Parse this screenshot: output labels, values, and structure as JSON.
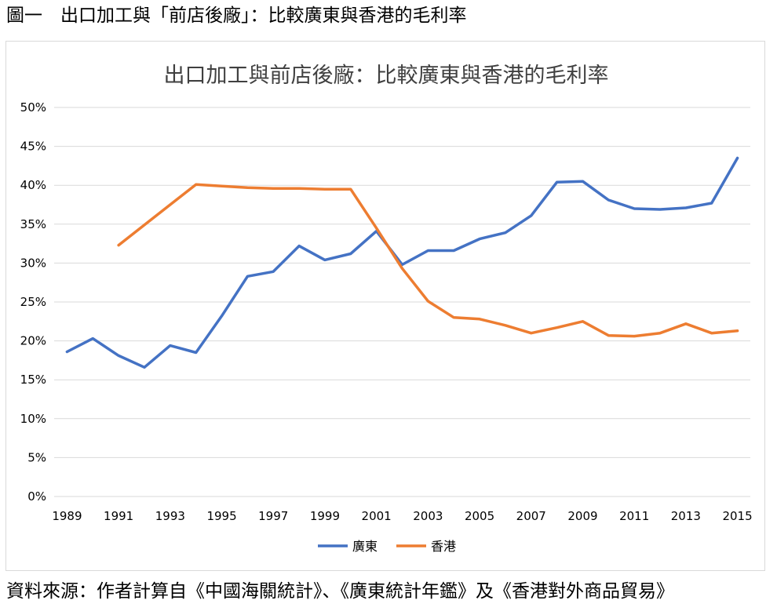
{
  "figure": {
    "caption": "圖一　出口加工與「前店後廠」：比較廣東與香港的毛利率",
    "source": "資料來源：作者計算自《中國海關統計》、《廣東統計年鑑》及《香港對外商品貿易》"
  },
  "chart_data": {
    "type": "line",
    "title": "出口加工與前店後廠：比較廣東與香港的毛利率",
    "xlabel": "",
    "ylabel": "",
    "x": [
      1989,
      1990,
      1991,
      1992,
      1993,
      1994,
      1995,
      1996,
      1997,
      1998,
      1999,
      2000,
      2001,
      2002,
      2003,
      2004,
      2005,
      2006,
      2007,
      2008,
      2009,
      2010,
      2011,
      2012,
      2013,
      2014,
      2015
    ],
    "x_tick_labels": [
      "1989",
      "1991",
      "1993",
      "1995",
      "1997",
      "1999",
      "2001",
      "2003",
      "2005",
      "2007",
      "2009",
      "2011",
      "2013",
      "2015"
    ],
    "ylim": [
      0,
      50
    ],
    "y_tick_labels": [
      "0%",
      "5%",
      "10%",
      "15%",
      "20%",
      "25%",
      "30%",
      "35%",
      "40%",
      "45%",
      "50%"
    ],
    "grid": "horizontal",
    "legend_position": "bottom",
    "series": [
      {
        "name": "廣東",
        "color": "#4472c4",
        "values": [
          18.6,
          20.3,
          18.1,
          16.6,
          19.4,
          18.5,
          23.2,
          28.3,
          28.9,
          32.2,
          30.4,
          31.2,
          34.1,
          29.8,
          31.6,
          31.6,
          33.1,
          33.9,
          36.1,
          40.4,
          40.5,
          38.1,
          37.0,
          36.9,
          37.1,
          37.7,
          43.5
        ]
      },
      {
        "name": "香港",
        "color": "#ed7d31",
        "values": [
          null,
          null,
          32.3,
          34.9,
          37.5,
          40.1,
          39.9,
          39.7,
          39.6,
          39.6,
          39.5,
          39.5,
          34.5,
          29.3,
          25.1,
          23.0,
          22.8,
          22.0,
          21.0,
          21.7,
          22.5,
          20.7,
          20.6,
          21.0,
          22.2,
          21.0,
          21.3
        ]
      }
    ]
  }
}
